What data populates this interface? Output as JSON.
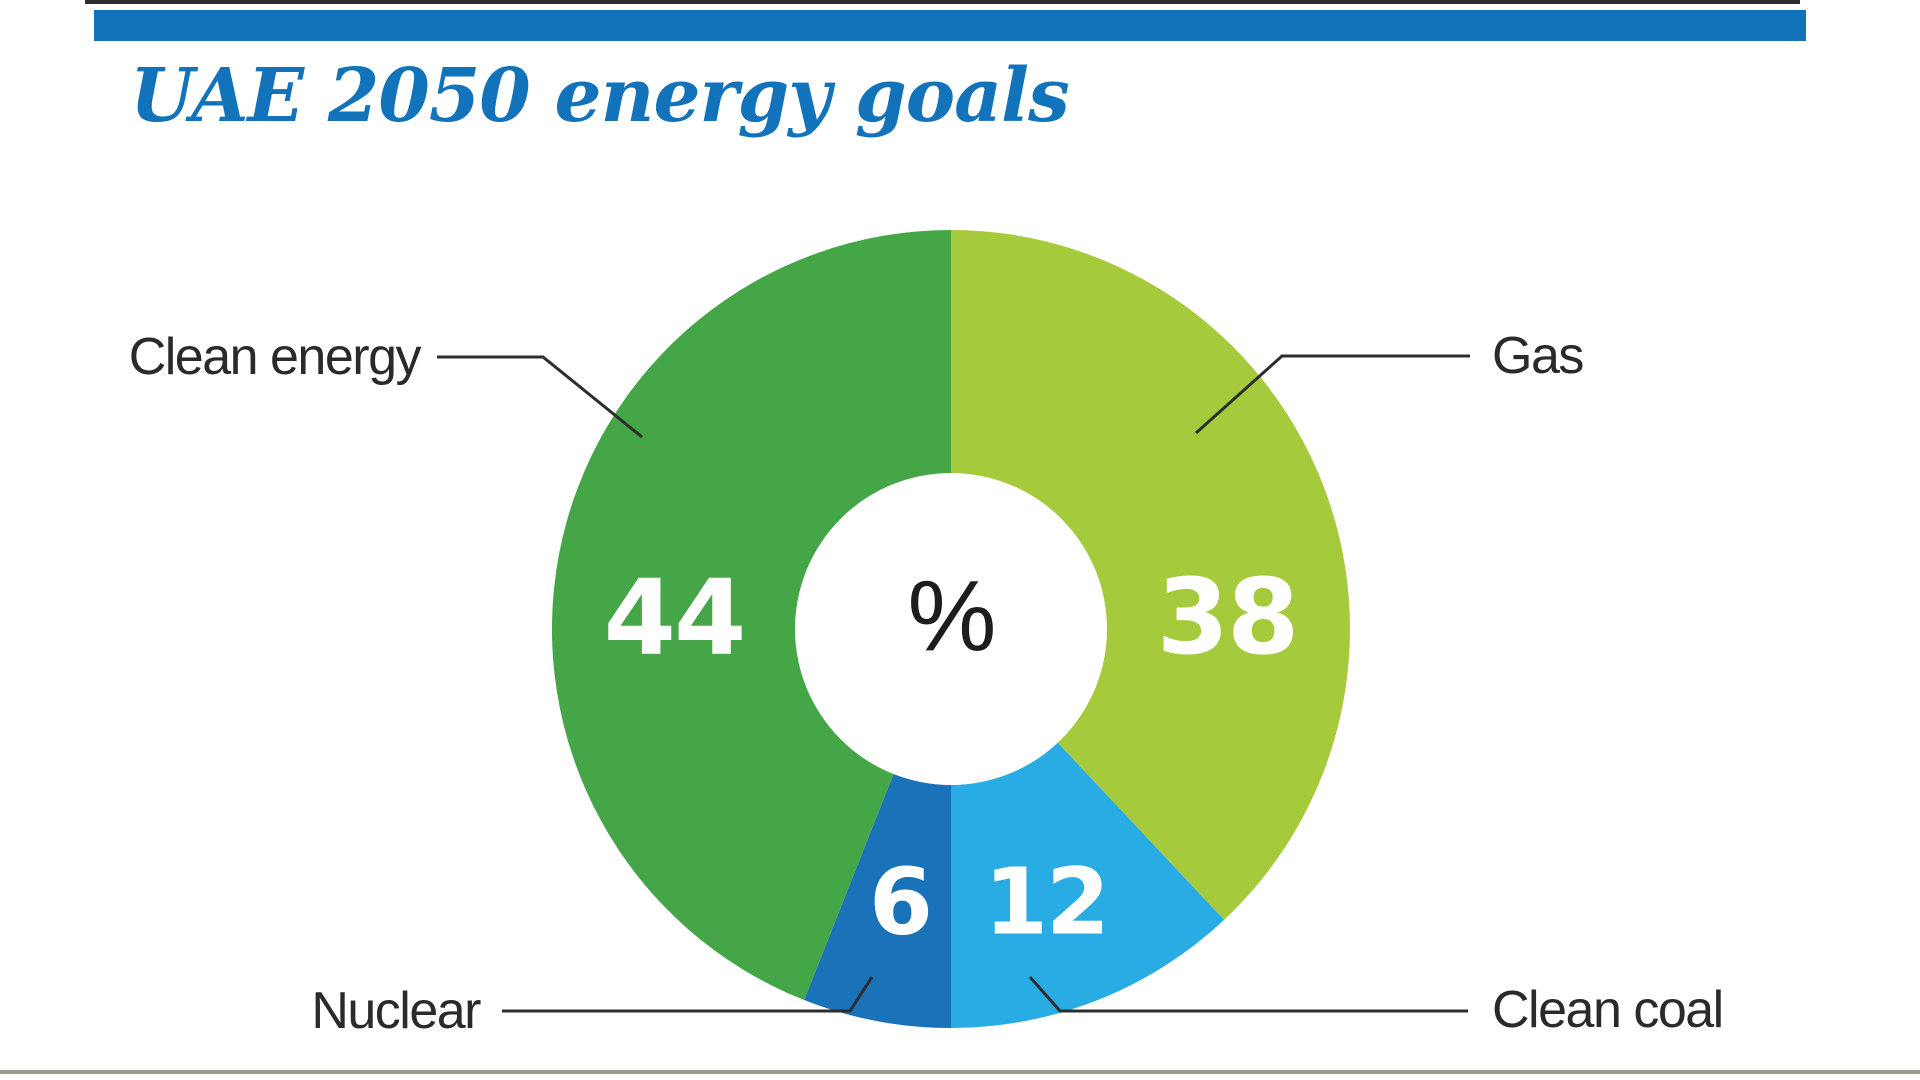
{
  "header": {
    "title": "UAE 2050 energy goals",
    "accent_color": "#1273bb"
  },
  "chart_data": {
    "type": "pie",
    "donut": true,
    "title": "UAE 2050 energy goals",
    "unit": "%",
    "center_label": "%",
    "start_angle_deg": 0,
    "direction": "clockwise",
    "slices": [
      {
        "label": "Gas",
        "value": 38,
        "color": "#a5ca3c"
      },
      {
        "label": "Clean coal",
        "value": 12,
        "color": "#29abe3"
      },
      {
        "label": "Nuclear",
        "value": 6,
        "color": "#1a72b9"
      },
      {
        "label": "Clean energy",
        "value": 44,
        "color": "#45a648"
      }
    ],
    "legend_position": "callout-labels",
    "grid": false
  }
}
